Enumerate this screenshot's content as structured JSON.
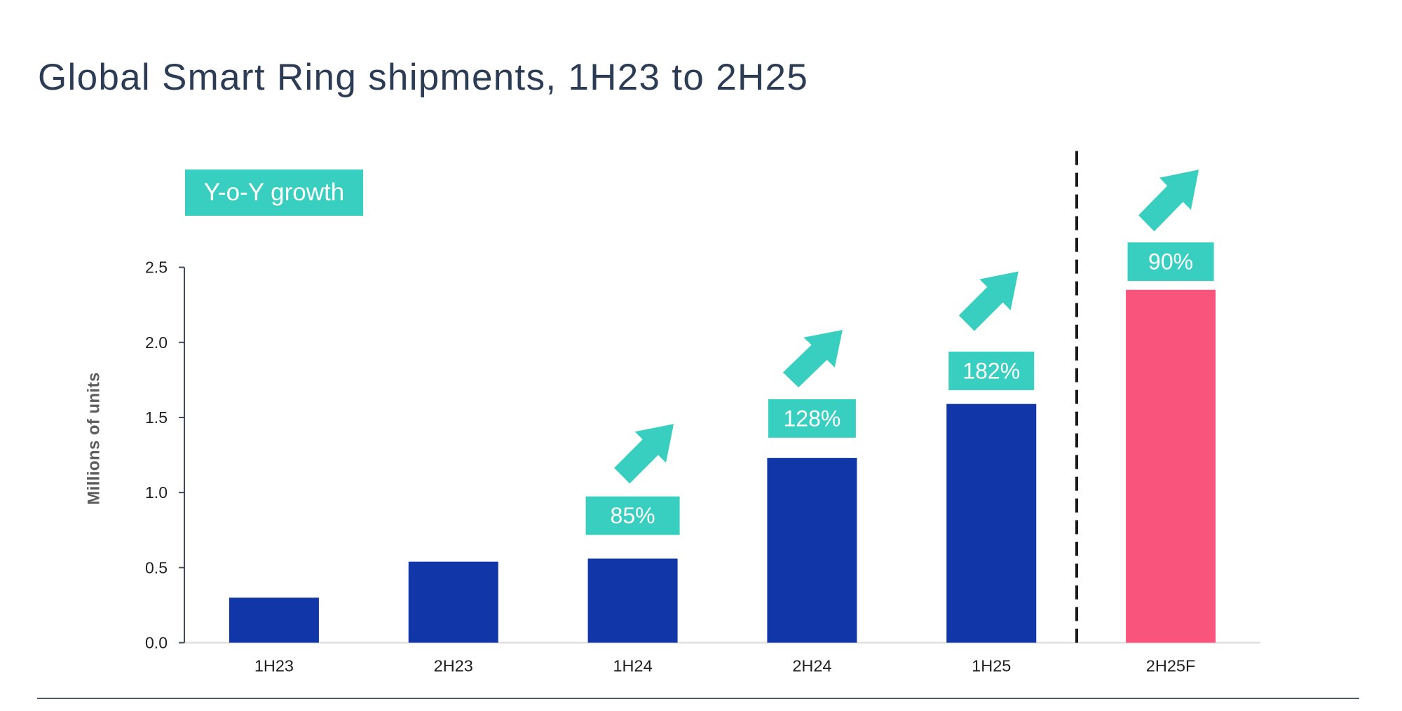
{
  "title": "Global Smart Ring shipments, 1H23 to 2H25",
  "legend_badge": "Y-o-Y growth",
  "colors": {
    "bar_blue": "#1136a7",
    "bar_pink": "#f9557c",
    "accent_teal": "#38cfc0",
    "title_navy": "#2d3c55",
    "axis_line": "#3f4a59",
    "baseline_gray": "#d9d9d9",
    "tick_label": "#1f1f1f",
    "axis_title_gray": "#5d5d5d",
    "annotation_text": "#ffffff",
    "dashed_line": "#1a1a1a",
    "divider_gray": "#505a64"
  },
  "chart_data": {
    "type": "bar",
    "title": "Global Smart Ring shipments, 1H23 to 2H25",
    "categories": [
      "1H23",
      "2H23",
      "1H24",
      "2H24",
      "1H25",
      "2H25F"
    ],
    "values": [
      0.3,
      0.54,
      0.56,
      1.23,
      1.59,
      2.35
    ],
    "series_name": "Smart Ring shipments",
    "ylabel": "Millions of units",
    "yticks": [
      "0.0",
      "0.5",
      "1.0",
      "1.5",
      "2.0",
      "2.5"
    ],
    "ylim": [
      0,
      2.5
    ],
    "grid": false,
    "legend_position": "top-left",
    "forecast_category": "2H25F",
    "annotations": [
      {
        "category": "1H24",
        "label": "85%"
      },
      {
        "category": "2H24",
        "label": "128%"
      },
      {
        "category": "1H25",
        "label": "182%"
      },
      {
        "category": "2H25F",
        "label": "90%"
      }
    ]
  }
}
